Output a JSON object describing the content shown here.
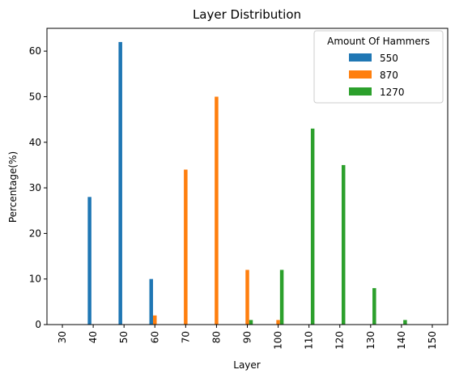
{
  "chart_data": {
    "type": "bar",
    "title": "Layer Distribution",
    "xlabel": "Layer",
    "ylabel": "Percentage(%)",
    "categories": [
      "30",
      "40",
      "50",
      "60",
      "70",
      "80",
      "90",
      "100",
      "110",
      "120",
      "130",
      "140",
      "150"
    ],
    "ylim": [
      0,
      65
    ],
    "yticks": [
      0,
      10,
      20,
      30,
      40,
      50,
      60
    ],
    "grid": false,
    "legend": {
      "title": "Amount Of Hammers",
      "position": "top-right"
    },
    "series": [
      {
        "name": "550",
        "color": "#1f77b4",
        "values": [
          0,
          28,
          62,
          10,
          0,
          0,
          0,
          0,
          0,
          0,
          0,
          0,
          0
        ]
      },
      {
        "name": "870",
        "color": "#ff7f0e",
        "values": [
          0,
          0,
          0,
          2,
          34,
          50,
          12,
          1,
          0,
          0,
          0,
          0,
          0
        ]
      },
      {
        "name": "1270",
        "color": "#2ca02c",
        "values": [
          0,
          0,
          0,
          0,
          0,
          0,
          1,
          12,
          43,
          35,
          8,
          1,
          0
        ]
      }
    ]
  }
}
